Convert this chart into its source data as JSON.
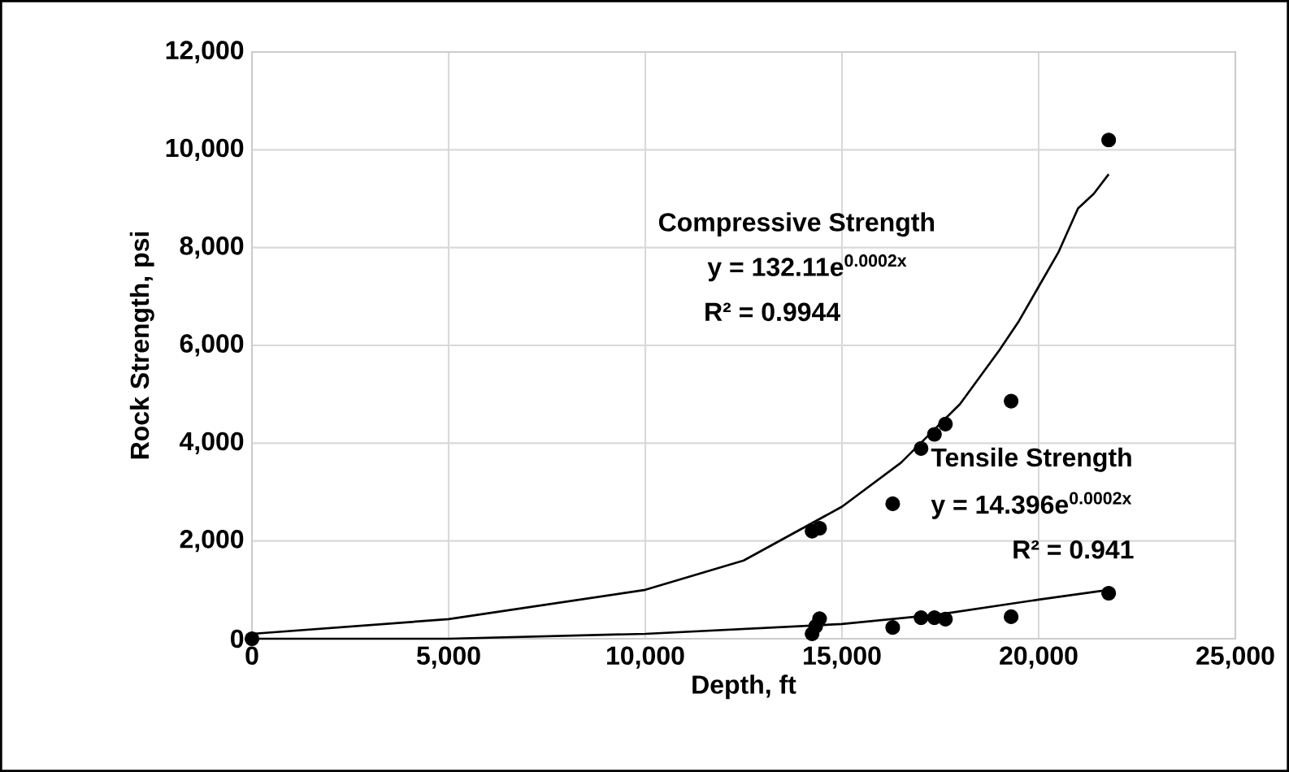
{
  "chart_data": {
    "type": "scatter",
    "xlabel": "Depth, ft",
    "ylabel": "Rock Strength, psi",
    "xlim": [
      0,
      25000
    ],
    "ylim": [
      0,
      12000
    ],
    "xticks": [
      0,
      {
        "value": 5000,
        "label": "5,000"
      },
      {
        "value": 10000,
        "label": "10,000"
      },
      {
        "value": 15000,
        "label": "15,000"
      },
      {
        "value": 20000,
        "label": "20,000"
      },
      {
        "value": 25000,
        "label": "25,000"
      }
    ],
    "yticks": [
      0,
      {
        "value": 2000,
        "label": "2,000"
      },
      {
        "value": 4000,
        "label": "4,000"
      },
      {
        "value": 6000,
        "label": "6,000"
      },
      {
        "value": 8000,
        "label": "8,000"
      },
      {
        "value": 10000,
        "label": "10,000"
      },
      {
        "value": 12000,
        "label": "12,000"
      }
    ],
    "grid": true,
    "legend": false,
    "series": [
      {
        "marker": "circle",
        "color": "#000000",
        "x": [
          14240,
          14430,
          16290,
          17010,
          17350,
          17630,
          19300,
          21780
        ],
        "values": [
          2200,
          2260,
          2760,
          3890,
          4180,
          4390,
          4860,
          10200
        ]
      },
      {
        "marker": "circle",
        "color": "#000000",
        "x": [
          0,
          14240,
          14330,
          14430,
          16290,
          17010,
          17350,
          17630,
          19300,
          21780
        ],
        "values": [
          0,
          100,
          250,
          410,
          230,
          430,
          430,
          400,
          450,
          930
        ]
      },
      {
        "type": "line",
        "marker": "none",
        "line_style": "solid",
        "color": "#000000",
        "x": [
          0,
          5000,
          10000,
          12500,
          15000,
          16500,
          18000,
          19000,
          19500,
          20000,
          20500,
          21000,
          21400,
          21780
        ],
        "values": [
          100,
          400,
          1000,
          1600,
          2700,
          3600,
          4800,
          5900,
          6500,
          7200,
          7900,
          8800,
          9100,
          9500
        ]
      },
      {
        "type": "line",
        "marker": "none",
        "line_style": "solid",
        "color": "#000000",
        "x": [
          0,
          5000,
          10000,
          15000,
          17500,
          20000,
          21780
        ],
        "values": [
          0,
          0,
          100,
          300,
          500,
          800,
          1000
        ]
      }
    ],
    "annotations": [
      "Compressive Strength",
      "y = 132.11e$^{0.0002x}$",
      "R² = 0.9944",
      "Tensile Strength",
      "y = 14.396e$^{0.0002x}$",
      "R² = 0.941"
    ]
  }
}
